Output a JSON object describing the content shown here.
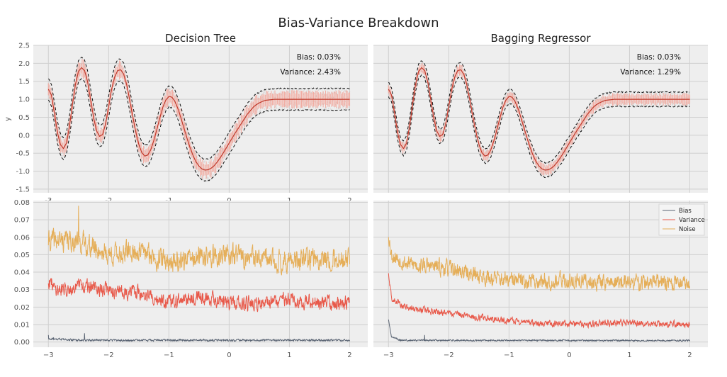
{
  "figure": {
    "title": "Bias-Variance Breakdown",
    "colors": {
      "panel_bg": "#eeeeee",
      "grid": "#cfcfcf",
      "bias": "#5a6473",
      "variance": "#e8594a",
      "noise": "#e5ae58",
      "band": "#f3a79b"
    }
  },
  "chart_data": [
    {
      "id": "top-left",
      "type": "line",
      "title": "Decision Tree",
      "ylabel": "y",
      "xlim": [
        -3.25,
        2.3
      ],
      "ylim": [
        -1.6,
        2.5
      ],
      "yticks": [
        "2.5",
        "2.0",
        "1.5",
        "1.0",
        "0.5",
        "0.0",
        "-0.5",
        "-1.0",
        "-1.5"
      ],
      "ytick_values": [
        2.5,
        2.0,
        1.5,
        1.0,
        0.5,
        0.0,
        -0.5,
        -1.0,
        -1.5
      ],
      "xticks": [
        "-3",
        "-2",
        "-1",
        "0",
        "1",
        "2"
      ],
      "xtick_values": [
        -3,
        -2,
        -1,
        0,
        1,
        2
      ],
      "annotations": [
        "Bias: 0.03%",
        "Variance: 2.43%"
      ],
      "band_halfwidth": 0.3,
      "mean_curve": [
        [
          -3.0,
          1.28
        ],
        [
          -2.95,
          1.12
        ],
        [
          -2.9,
          0.62
        ],
        [
          -2.85,
          0.08
        ],
        [
          -2.8,
          -0.26
        ],
        [
          -2.75,
          -0.37
        ],
        [
          -2.7,
          -0.22
        ],
        [
          -2.65,
          0.25
        ],
        [
          -2.6,
          0.86
        ],
        [
          -2.55,
          1.42
        ],
        [
          -2.5,
          1.78
        ],
        [
          -2.45,
          1.88
        ],
        [
          -2.4,
          1.8
        ],
        [
          -2.35,
          1.5
        ],
        [
          -2.3,
          1.0
        ],
        [
          -2.25,
          0.5
        ],
        [
          -2.2,
          0.12
        ],
        [
          -2.15,
          -0.03
        ],
        [
          -2.1,
          0.02
        ],
        [
          -2.05,
          0.32
        ],
        [
          -2.0,
          0.8
        ],
        [
          -1.95,
          1.28
        ],
        [
          -1.9,
          1.62
        ],
        [
          -1.85,
          1.8
        ],
        [
          -1.8,
          1.82
        ],
        [
          -1.75,
          1.7
        ],
        [
          -1.7,
          1.4
        ],
        [
          -1.65,
          0.98
        ],
        [
          -1.6,
          0.52
        ],
        [
          -1.55,
          0.1
        ],
        [
          -1.5,
          -0.25
        ],
        [
          -1.45,
          -0.48
        ],
        [
          -1.4,
          -0.58
        ],
        [
          -1.35,
          -0.55
        ],
        [
          -1.3,
          -0.4
        ],
        [
          -1.25,
          -0.15
        ],
        [
          -1.2,
          0.16
        ],
        [
          -1.15,
          0.48
        ],
        [
          -1.1,
          0.78
        ],
        [
          -1.05,
          0.98
        ],
        [
          -1.0,
          1.08
        ],
        [
          -0.95,
          1.06
        ],
        [
          -0.9,
          0.94
        ],
        [
          -0.85,
          0.74
        ],
        [
          -0.8,
          0.48
        ],
        [
          -0.75,
          0.2
        ],
        [
          -0.7,
          -0.08
        ],
        [
          -0.65,
          -0.34
        ],
        [
          -0.6,
          -0.56
        ],
        [
          -0.55,
          -0.74
        ],
        [
          -0.5,
          -0.86
        ],
        [
          -0.45,
          -0.94
        ],
        [
          -0.4,
          -0.97
        ],
        [
          -0.35,
          -0.96
        ],
        [
          -0.3,
          -0.92
        ],
        [
          -0.25,
          -0.85
        ],
        [
          -0.2,
          -0.75
        ],
        [
          -0.15,
          -0.63
        ],
        [
          -0.1,
          -0.5
        ],
        [
          -0.05,
          -0.36
        ],
        [
          0.0,
          -0.22
        ],
        [
          0.05,
          -0.08
        ],
        [
          0.1,
          0.06
        ],
        [
          0.15,
          0.19
        ],
        [
          0.2,
          0.32
        ],
        [
          0.25,
          0.45
        ],
        [
          0.3,
          0.58
        ],
        [
          0.35,
          0.68
        ],
        [
          0.4,
          0.78
        ],
        [
          0.45,
          0.85
        ],
        [
          0.5,
          0.9
        ],
        [
          0.55,
          0.94
        ],
        [
          0.6,
          0.97
        ],
        [
          0.65,
          0.98
        ],
        [
          0.7,
          0.99
        ],
        [
          0.75,
          1.0
        ],
        [
          0.8,
          1.0
        ],
        [
          0.85,
          1.0
        ],
        [
          0.9,
          1.0
        ],
        [
          0.95,
          1.0
        ],
        [
          1.0,
          1.0
        ]
      ]
    },
    {
      "id": "top-right",
      "type": "line",
      "title": "Bagging Regressor",
      "xlim": [
        -3.25,
        2.3
      ],
      "ylim": [
        -1.6,
        2.5
      ],
      "yticks": [],
      "xticks": [],
      "annotations": [
        "Bias: 0.03%",
        "Variance: 1.29%"
      ],
      "band_halfwidth": 0.2,
      "mean_curve": "same as top-left"
    },
    {
      "id": "bottom-left",
      "type": "line",
      "xlim": [
        -3.25,
        2.3
      ],
      "ylim": [
        -0.003,
        0.081
      ],
      "yticks": [
        "0.08",
        "0.07",
        "0.06",
        "0.05",
        "0.04",
        "0.03",
        "0.02",
        "0.01",
        "0.00"
      ],
      "ytick_values": [
        0.08,
        0.07,
        0.06,
        0.05,
        0.04,
        0.03,
        0.02,
        0.01,
        0.0
      ],
      "xticks": [
        "−3",
        "−2",
        "−1",
        "0",
        "1",
        "2"
      ],
      "xtick_values": [
        -3,
        -2,
        -1,
        0,
        1,
        2
      ],
      "series": [
        {
          "name": "Bias",
          "key": "bias",
          "level": [
            [
              -3.0,
              0.002
            ],
            [
              -2.5,
              0.001
            ],
            [
              2.0,
              0.001
            ]
          ],
          "spikes": [
            [
              -3.0,
              0.004
            ],
            [
              -2.4,
              0.005
            ]
          ],
          "noise_amp": 0.0005
        },
        {
          "name": "Variance",
          "key": "variance",
          "level": [
            [
              -3.0,
              0.035
            ],
            [
              -2.85,
              0.03
            ],
            [
              -2.5,
              0.032
            ],
            [
              -2.0,
              0.03
            ],
            [
              -1.5,
              0.028
            ],
            [
              -1.0,
              0.022
            ],
            [
              -0.5,
              0.026
            ],
            [
              0.0,
              0.022
            ],
            [
              0.5,
              0.022
            ],
            [
              1.0,
              0.024
            ],
            [
              1.5,
              0.022
            ],
            [
              2.0,
              0.022
            ]
          ],
          "noise_amp": 0.004
        },
        {
          "name": "Noise",
          "key": "noise",
          "level": [
            [
              -3.0,
              0.058
            ],
            [
              -2.5,
              0.058
            ],
            [
              -2.0,
              0.05
            ],
            [
              -1.5,
              0.052
            ],
            [
              -1.0,
              0.046
            ],
            [
              -0.5,
              0.048
            ],
            [
              0.0,
              0.05
            ],
            [
              0.5,
              0.047
            ],
            [
              1.0,
              0.046
            ],
            [
              1.5,
              0.048
            ],
            [
              2.0,
              0.047
            ]
          ],
          "spikes": [
            [
              -2.5,
              0.078
            ]
          ],
          "noise_amp": 0.006
        }
      ]
    },
    {
      "id": "bottom-right",
      "type": "line",
      "xlim": [
        -3.25,
        2.3
      ],
      "ylim": [
        -0.003,
        0.081
      ],
      "yticks": [],
      "xticks": [
        "−3",
        "−2",
        "−1",
        "0",
        "1",
        "2"
      ],
      "xtick_values": [
        -3,
        -2,
        -1,
        0,
        1,
        2
      ],
      "legend": {
        "position": "upper right",
        "entries": [
          "Bias",
          "Variance",
          "Noise"
        ]
      },
      "series": [
        {
          "name": "Bias",
          "key": "bias",
          "level": [
            [
              -3.0,
              0.013
            ],
            [
              -2.95,
              0.003
            ],
            [
              -2.8,
              0.001
            ],
            [
              2.0,
              0.0008
            ]
          ],
          "spikes": [
            [
              -2.4,
              0.004
            ]
          ],
          "noise_amp": 0.0004
        },
        {
          "name": "Variance",
          "key": "variance",
          "level": [
            [
              -3.0,
              0.04
            ],
            [
              -2.95,
              0.025
            ],
            [
              -2.7,
              0.02
            ],
            [
              -2.0,
              0.016
            ],
            [
              -1.5,
              0.014
            ],
            [
              -1.0,
              0.012
            ],
            [
              -0.5,
              0.011
            ],
            [
              0.0,
              0.01
            ],
            [
              1.0,
              0.011
            ],
            [
              2.0,
              0.01
            ]
          ],
          "noise_amp": 0.0018
        },
        {
          "name": "Noise",
          "key": "noise",
          "level": [
            [
              -3.0,
              0.062
            ],
            [
              -2.95,
              0.05
            ],
            [
              -2.7,
              0.045
            ],
            [
              -2.0,
              0.042
            ],
            [
              -1.5,
              0.038
            ],
            [
              -1.0,
              0.035
            ],
            [
              0.0,
              0.035
            ],
            [
              1.0,
              0.034
            ],
            [
              2.0,
              0.034
            ]
          ],
          "noise_amp": 0.0045
        }
      ]
    }
  ]
}
